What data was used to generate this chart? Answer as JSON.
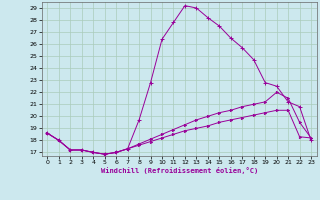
{
  "xlabel": "Windchill (Refroidissement éolien,°C)",
  "bg_color": "#cce8ee",
  "grid_color": "#aaccbb",
  "line_color": "#990099",
  "xlim": [
    -0.5,
    23.5
  ],
  "ylim": [
    16.7,
    29.5
  ],
  "yticks": [
    17,
    18,
    19,
    20,
    21,
    22,
    23,
    24,
    25,
    26,
    27,
    28,
    29
  ],
  "xticks": [
    0,
    1,
    2,
    3,
    4,
    5,
    6,
    7,
    8,
    9,
    10,
    11,
    12,
    13,
    14,
    15,
    16,
    17,
    18,
    19,
    20,
    21,
    22,
    23
  ],
  "line1_x": [
    0,
    1,
    2,
    3,
    4,
    5,
    6,
    7,
    8,
    9,
    10,
    11,
    12,
    13,
    14,
    15,
    16,
    17,
    18,
    19,
    20,
    21,
    22,
    23
  ],
  "line1_y": [
    18.6,
    18.0,
    17.2,
    17.2,
    17.0,
    16.85,
    17.0,
    17.3,
    19.7,
    22.8,
    26.4,
    27.8,
    29.2,
    29.0,
    28.2,
    27.5,
    26.5,
    25.7,
    24.7,
    22.8,
    22.5,
    21.2,
    20.8,
    18.0
  ],
  "line2_x": [
    0,
    1,
    2,
    3,
    4,
    5,
    6,
    7,
    8,
    9,
    10,
    11,
    12,
    13,
    14,
    15,
    16,
    17,
    18,
    19,
    20,
    21,
    22,
    23
  ],
  "line2_y": [
    18.6,
    18.0,
    17.2,
    17.2,
    17.0,
    16.85,
    17.0,
    17.3,
    17.7,
    18.1,
    18.5,
    18.9,
    19.3,
    19.7,
    20.0,
    20.3,
    20.5,
    20.8,
    21.0,
    21.2,
    22.0,
    21.5,
    19.5,
    18.2
  ],
  "line3_x": [
    0,
    1,
    2,
    3,
    4,
    5,
    6,
    7,
    8,
    9,
    10,
    11,
    12,
    13,
    14,
    15,
    16,
    17,
    18,
    19,
    20,
    21,
    22,
    23
  ],
  "line3_y": [
    18.6,
    18.0,
    17.2,
    17.2,
    17.0,
    16.85,
    17.0,
    17.3,
    17.6,
    17.9,
    18.2,
    18.5,
    18.8,
    19.0,
    19.2,
    19.5,
    19.7,
    19.9,
    20.1,
    20.3,
    20.5,
    20.5,
    18.3,
    18.2
  ]
}
